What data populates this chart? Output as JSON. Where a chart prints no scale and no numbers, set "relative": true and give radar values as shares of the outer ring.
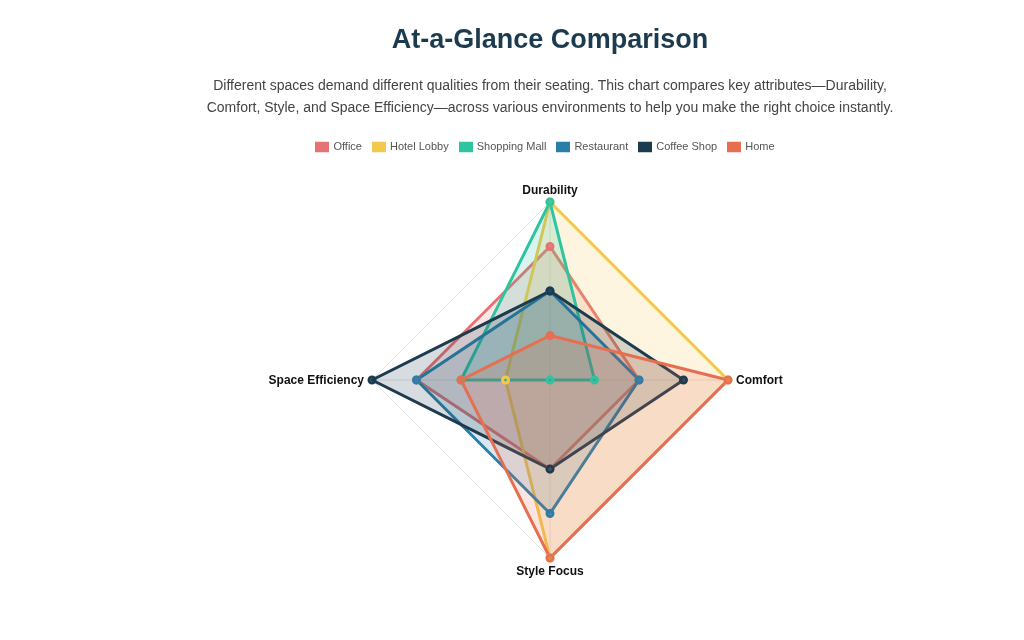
{
  "chart_data": {
    "type": "radar",
    "title": "At-a-Glance Comparison",
    "subtitle": "Different spaces demand different qualities from their seating. This chart compares key attributes—Durability, Comfort, Style, and Space Efficiency—across various environments to help you make the right choice instantly.",
    "categories": [
      "Durability",
      "Comfort",
      "Style Focus",
      "Space Efficiency"
    ],
    "relative": true,
    "grid": true,
    "legend": "top",
    "marker": "circle",
    "line_style": "solid",
    "series": [
      {
        "name": "Office",
        "color": "#e57373",
        "values": [
          0.75,
          0.5,
          0.5,
          0.75
        ]
      },
      {
        "name": "Hotel Lobby",
        "color": "#f2c94c",
        "values": [
          1,
          1,
          1,
          0.25
        ]
      },
      {
        "name": "Shopping Mall",
        "color": "#2ec4a0",
        "values": [
          1,
          0.25,
          0,
          0.5
        ]
      },
      {
        "name": "Restaurant",
        "color": "#2a7fa8",
        "values": [
          0.5,
          0.5,
          0.75,
          0.75
        ]
      },
      {
        "name": "Coffee Shop",
        "color": "#1d3b4f",
        "values": [
          0.5,
          0.75,
          0.5,
          1
        ]
      },
      {
        "name": "Home",
        "color": "#e76f51",
        "values": [
          0.25,
          1,
          1,
          0.5
        ]
      }
    ]
  }
}
